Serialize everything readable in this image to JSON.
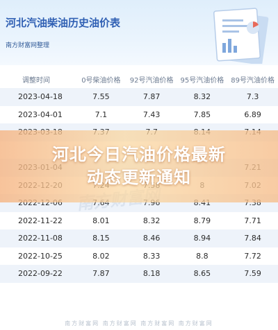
{
  "header": {
    "title": "河北汽油柴油历史油价表",
    "subtitle": "南方财富网整理"
  },
  "table": {
    "columns": [
      "调整时间",
      "0号柴油价格",
      "92号汽油价格",
      "95号汽油价格",
      "89号汽油价格"
    ],
    "rows": [
      [
        "2023-04-18",
        "7.55",
        "7.87",
        "8.32",
        "7.3"
      ],
      [
        "2023-04-01",
        "7.1",
        "7.43",
        "7.85",
        "6.89"
      ],
      [
        "2023-03-18",
        "7.37",
        "7.7",
        "8.14",
        "7.14"
      ],
      [
        "",
        "",
        "",
        "",
        ""
      ],
      [
        "2023-01-04",
        "",
        "",
        "",
        "7.21"
      ],
      [
        "2022-12-20",
        "7.24",
        "7.58",
        "8",
        "7.02"
      ],
      [
        "2022-12-06",
        "7.64",
        "7.96",
        "8.41",
        "7.38"
      ],
      [
        "2022-11-22",
        "8.01",
        "8.32",
        "8.79",
        "7.71"
      ],
      [
        "2022-11-08",
        "8.15",
        "8.46",
        "8.94",
        "7.84"
      ],
      [
        "2022-10-25",
        "8.02",
        "8.33",
        "8.8",
        "7.72"
      ],
      [
        "2022-09-22",
        "7.87",
        "8.18",
        "8.65",
        "7.59"
      ]
    ]
  },
  "banner": {
    "line1": "河北今日汽油价格最新",
    "line2": "动态更新通知"
  },
  "watermark": {
    "mid": "南方财富网",
    "bottom": "南方财富网 南方财富网 南方财富网 南方财富网"
  },
  "colors": {
    "header_title": "#2f5fb3",
    "row_stripe": "#eef3fa",
    "banner": "#f5b482"
  }
}
